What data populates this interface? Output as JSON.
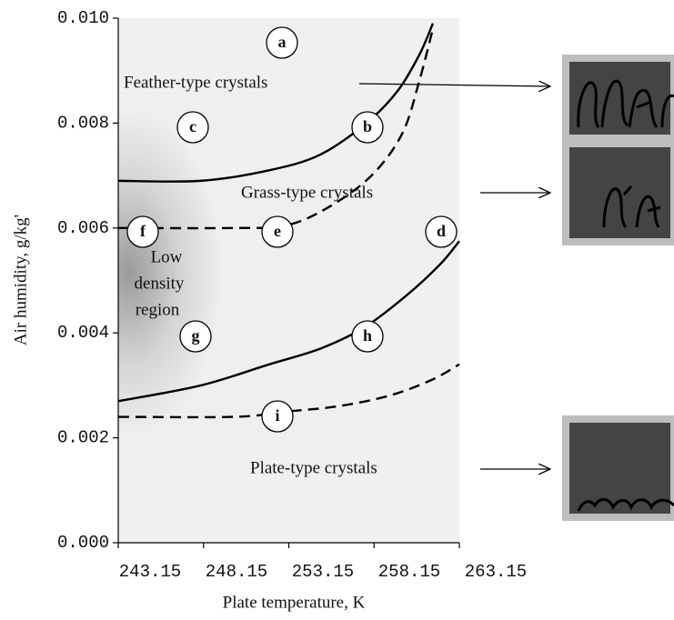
{
  "chart_data": {
    "type": "line",
    "x_label": "Plate temperature, K",
    "y_label": "Air humidity, g/kg'",
    "xlim": [
      243.15,
      263.15
    ],
    "ylim": [
      0,
      0.01
    ],
    "xticks": [
      243.15,
      248.15,
      253.15,
      258.15,
      263.15
    ],
    "yticks": [
      {
        "value": 0,
        "label": "0.000"
      },
      0.002,
      0.004,
      0.006,
      0.008,
      {
        "value": 0.01,
        "label": "0.010"
      }
    ],
    "series": [
      {
        "color": "#000000",
        "style": "solid",
        "x": [
          243.15,
          248,
          252,
          255,
          257.7,
          259.5,
          260.8,
          261.6
        ],
        "values": [
          0.0069,
          0.0069,
          0.0071,
          0.0074,
          0.008,
          0.0086,
          0.0093,
          0.0099
        ]
      },
      {
        "color": "#000000",
        "style": "dashed",
        "x": [
          243.15,
          250,
          253,
          255.5,
          258,
          259.8,
          260.8,
          261.6
        ],
        "values": [
          0.006,
          0.006,
          0.00605,
          0.0064,
          0.007,
          0.0078,
          0.0088,
          0.0098
        ]
      },
      {
        "color": "#000000",
        "style": "solid",
        "x": [
          243.15,
          248,
          252,
          255,
          257.55,
          260,
          262,
          263.15
        ],
        "values": [
          0.0027,
          0.003,
          0.0034,
          0.0037,
          0.0041,
          0.0047,
          0.0053,
          0.00575
        ]
      },
      {
        "color": "#000000",
        "style": "dashed",
        "x": [
          243.15,
          250,
          253,
          256,
          259,
          261.5,
          263.15
        ],
        "values": [
          0.0024,
          0.0024,
          0.0025,
          0.0026,
          0.0028,
          0.0031,
          0.0034
        ]
      }
    ],
    "annotations": [
      "Feather-type crystals",
      "Grass-type crystals",
      "Plate-type crystals",
      "Low",
      "density",
      "region"
    ],
    "region_labels": [
      "a",
      "b",
      "c",
      "d",
      "e",
      "f",
      "g",
      "h",
      "i"
    ]
  }
}
